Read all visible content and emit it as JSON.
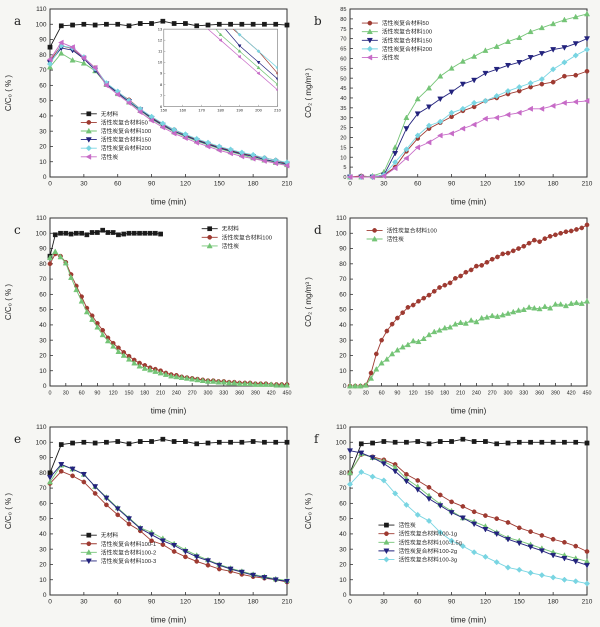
{
  "page": {
    "background": "#f6f6f3"
  },
  "chart_data": [
    {
      "panel": "a",
      "type": "line",
      "xlabel": "time (min)",
      "ylabel": "C/C₀ ( % )",
      "xlim": [
        0,
        210
      ],
      "xstep": 30,
      "ylim": [
        0,
        110
      ],
      "ystep": 10,
      "grid": false,
      "legend_position": "inside-left-lower",
      "legend": [
        0.13,
        0.6
      ],
      "x": [
        0,
        10,
        20,
        30,
        40,
        50,
        60,
        70,
        80,
        90,
        100,
        110,
        120,
        130,
        140,
        150,
        160,
        170,
        180,
        190,
        200,
        210
      ],
      "series": [
        {
          "name": "无材料",
          "color": "#1a1a1a",
          "marker": "square",
          "values": [
            85,
            99,
            99.5,
            100,
            99.5,
            100,
            100,
            99,
            100.5,
            100.5,
            102,
            100.5,
            100.5,
            99,
            99.5,
            100,
            100,
            100,
            100,
            100,
            100,
            99.5
          ]
        },
        {
          "name": "活性炭复合材料50",
          "color": "#9e3a31",
          "marker": "circle",
          "values": [
            76,
            86,
            84,
            78,
            71.5,
            61,
            55.5,
            50.5,
            44.5,
            39,
            34.5,
            31,
            27.5,
            24.5,
            22,
            19.5,
            17.5,
            15.5,
            14,
            12.5,
            11,
            9
          ]
        },
        {
          "name": "活性炭复合材料100",
          "color": "#74c476",
          "marker": "triangle-up",
          "values": [
            72,
            81,
            76.5,
            74.5,
            69.5,
            60.5,
            54.5,
            49,
            43.5,
            38,
            33.5,
            29.5,
            26.5,
            23.5,
            21,
            18.5,
            16.5,
            14.5,
            12.5,
            11,
            9.5,
            8
          ]
        },
        {
          "name": "活性炭复合材料150",
          "color": "#23237d",
          "marker": "triangle-down",
          "values": [
            75,
            84.5,
            83,
            77.5,
            70,
            61,
            55,
            49.5,
            44,
            38.5,
            34,
            30,
            27,
            24,
            21.5,
            19,
            17,
            15,
            13.5,
            11.5,
            10,
            8.5
          ]
        },
        {
          "name": "活性炭复合材料200",
          "color": "#79d5e2",
          "marker": "diamond",
          "values": [
            74,
            86,
            84.5,
            78.5,
            71,
            61.5,
            56,
            50,
            44.5,
            39.5,
            35,
            31,
            28,
            25,
            22.5,
            20,
            18,
            16,
            14.5,
            12.5,
            11,
            9.5
          ]
        },
        {
          "name": "活性炭",
          "color": "#c76bc7",
          "marker": "triangle-left",
          "values": [
            77,
            88,
            85,
            78,
            71.5,
            60,
            54,
            48.5,
            42.5,
            37,
            32.5,
            28.5,
            25.5,
            22.5,
            20,
            17.5,
            15.5,
            13.5,
            12,
            10.5,
            9,
            7.5
          ]
        }
      ],
      "inset": {
        "x0": 0.48,
        "y0": 0.12,
        "x1": 0.96,
        "y1": 0.58,
        "xlim": [
          150,
          210
        ],
        "ylim": [
          6,
          13
        ],
        "xstep": 10,
        "ystep": 1
      }
    },
    {
      "panel": "b",
      "type": "line",
      "xlabel": "time (min)",
      "ylabel": "CO₂ ( mg/m³ )",
      "xlim": [
        0,
        210
      ],
      "xstep": 30,
      "ylim": [
        0,
        85
      ],
      "ystep": 5,
      "ytick_font": 5.6,
      "grid": false,
      "legend_position": "inside-top-left",
      "legend": [
        0.05,
        0.06
      ],
      "x": [
        0,
        10,
        20,
        30,
        40,
        50,
        60,
        70,
        80,
        90,
        100,
        110,
        120,
        130,
        140,
        150,
        160,
        170,
        180,
        190,
        200,
        210
      ],
      "series": [
        {
          "name": "活性炭复合材料50",
          "color": "#9e3a31",
          "marker": "circle",
          "values": [
            0,
            0.5,
            0,
            1,
            5,
            13,
            19.5,
            24.5,
            27.5,
            30.5,
            33.5,
            35.5,
            38.5,
            40,
            42,
            43.5,
            45.5,
            47,
            48,
            51,
            51.5,
            53.5
          ]
        },
        {
          "name": "活性炭复合材料100",
          "color": "#74c476",
          "marker": "triangle-up",
          "values": [
            0,
            0,
            0.5,
            2.5,
            15,
            30,
            39.5,
            45,
            51,
            55,
            58.5,
            61,
            64,
            66,
            68.5,
            70.5,
            73.5,
            75.5,
            77.5,
            79.5,
            81,
            82.5
          ]
        },
        {
          "name": "活性炭复合材料150",
          "color": "#23237d",
          "marker": "triangle-down",
          "values": [
            0,
            0,
            0,
            1,
            12,
            24.5,
            32,
            35.5,
            39.5,
            43,
            47,
            49,
            52.5,
            54.5,
            56.5,
            58,
            60.5,
            62.5,
            64.5,
            65.5,
            67.5,
            70
          ]
        },
        {
          "name": "活性炭复合材料200",
          "color": "#79d5e2",
          "marker": "diamond",
          "values": [
            0,
            0,
            0,
            1,
            7.5,
            14,
            21,
            26,
            28,
            32.5,
            34.5,
            37.5,
            38.5,
            41,
            43.5,
            45.5,
            47.5,
            49.5,
            54.5,
            58,
            61.5,
            64.5
          ]
        },
        {
          "name": "活性炭",
          "color": "#c76bc7",
          "marker": "triangle-left",
          "values": [
            0,
            0,
            0,
            0.5,
            4.5,
            9.5,
            15,
            17.5,
            21,
            22,
            24.5,
            26.5,
            29.5,
            30,
            31.5,
            32.5,
            34.5,
            34.5,
            36,
            37.5,
            38,
            38.5
          ]
        }
      ]
    },
    {
      "panel": "c",
      "type": "line",
      "xlabel": "time (min)",
      "ylabel": "C/C₀ ( % )",
      "xlim": [
        0,
        450
      ],
      "xstep": 30,
      "ylim": [
        0,
        110
      ],
      "ystep": 10,
      "xtick_font": 5.4,
      "grid": false,
      "legend_position": "inside-top-right",
      "legend": [
        0.64,
        0.04
      ],
      "x": [
        0,
        10,
        20,
        30,
        40,
        50,
        60,
        70,
        80,
        90,
        100,
        110,
        120,
        130,
        140,
        150,
        160,
        170,
        180,
        190,
        200,
        210,
        220,
        230,
        240,
        250,
        260,
        270,
        280,
        290,
        300,
        310,
        320,
        330,
        340,
        350,
        360,
        370,
        380,
        390,
        400,
        410,
        420,
        430,
        440,
        450
      ],
      "series": [
        {
          "name": "无材料",
          "color": "#1a1a1a",
          "marker": "square",
          "values": [
            85,
            99,
            100,
            100,
            99.5,
            100,
            100,
            99,
            100.5,
            100.5,
            102,
            100.5,
            100.5,
            99,
            99.5,
            100,
            100,
            100,
            100,
            100,
            100,
            99.5
          ]
        },
        {
          "name": "活性炭复合材料100",
          "color": "#9e3a31",
          "marker": "circle",
          "values": [
            80,
            86.5,
            85,
            81,
            73,
            65.5,
            58.5,
            51,
            46,
            41,
            36.5,
            31.5,
            28,
            25,
            22,
            19.5,
            17,
            15,
            13.5,
            12,
            11,
            10,
            8.5,
            7.5,
            7,
            6,
            5.5,
            5,
            4.5,
            4,
            3.5,
            3.5,
            3,
            3,
            2.5,
            2.5,
            2,
            2,
            2,
            1.5,
            1.5,
            1.5,
            1,
            1,
            1,
            1
          ]
        },
        {
          "name": "活性炭",
          "color": "#74c476",
          "marker": "triangle-up",
          "values": [
            84,
            88,
            84.5,
            80.5,
            71,
            63,
            55.5,
            48.5,
            43.5,
            38.5,
            33.5,
            29.5,
            26,
            22.5,
            20,
            17.5,
            15,
            13,
            11.5,
            10.5,
            9.5,
            8.5,
            7.5,
            6.5,
            6,
            5.5,
            5,
            4.5,
            4,
            3.5,
            3,
            3,
            2.5,
            2.5,
            2,
            2,
            1.5,
            1.5,
            1.5,
            1,
            1,
            1,
            1,
            0.5,
            0.5,
            0.5
          ]
        }
      ]
    },
    {
      "panel": "d",
      "type": "line",
      "xlabel": "time (min)",
      "ylabel": "CO₂ ( mg/m³ )",
      "xlim": [
        0,
        450
      ],
      "xstep": 30,
      "ylim": [
        0,
        110
      ],
      "ystep": 10,
      "xtick_font": 5.4,
      "grid": false,
      "legend_position": "inside-top-left",
      "legend": [
        0.07,
        0.05
      ],
      "x": [
        0,
        10,
        20,
        30,
        40,
        50,
        60,
        70,
        80,
        90,
        100,
        110,
        120,
        130,
        140,
        150,
        160,
        170,
        180,
        190,
        200,
        210,
        220,
        230,
        240,
        250,
        260,
        270,
        280,
        290,
        300,
        310,
        320,
        330,
        340,
        350,
        360,
        370,
        380,
        390,
        400,
        410,
        420,
        430,
        440,
        450
      ],
      "series": [
        {
          "name": "活性炭复合材料100",
          "color": "#9e3a31",
          "marker": "circle",
          "values": [
            0,
            0,
            0,
            0.5,
            8.5,
            21,
            30,
            36,
            40.5,
            44.5,
            48,
            51.5,
            53,
            55.5,
            57.5,
            59.5,
            62,
            64.5,
            66,
            67.5,
            70.5,
            72,
            74.5,
            76,
            78.5,
            79,
            81,
            83,
            84.5,
            86.5,
            87,
            88.5,
            90,
            91.5,
            93.5,
            95.5,
            94.5,
            96.5,
            98,
            99,
            100,
            101,
            101.5,
            102.5,
            103.5,
            105.5
          ]
        },
        {
          "name": "活性炭",
          "color": "#74c476",
          "marker": "triangle-up",
          "values": [
            0,
            0,
            0,
            0.5,
            5,
            11,
            15,
            17.5,
            21,
            23.5,
            25.5,
            27,
            29.5,
            29,
            31,
            33.5,
            35.5,
            36.5,
            38,
            38.5,
            40.5,
            41.5,
            41,
            43,
            42,
            44.5,
            45,
            46,
            45.5,
            46.5,
            47.5,
            48.5,
            49.5,
            50,
            51.5,
            51,
            50.5,
            52,
            51,
            53.5,
            53.5,
            52.5,
            54,
            54.5,
            54,
            55.5
          ]
        }
      ]
    },
    {
      "panel": "e",
      "type": "line",
      "xlabel": "time (min)",
      "ylabel": "C/C₀ ( % )",
      "xlim": [
        0,
        210
      ],
      "xstep": 30,
      "ylim": [
        0,
        110
      ],
      "ystep": 10,
      "grid": false,
      "legend_position": "inside-left-lower",
      "legend": [
        0.13,
        0.62
      ],
      "x": [
        0,
        10,
        20,
        30,
        40,
        50,
        60,
        70,
        80,
        90,
        100,
        110,
        120,
        130,
        140,
        150,
        160,
        170,
        180,
        190,
        200,
        210
      ],
      "series": [
        {
          "name": "无材料",
          "color": "#1a1a1a",
          "marker": "square",
          "values": [
            80,
            98.5,
            99.5,
            100,
            99.5,
            100,
            100.5,
            99,
            100.5,
            100.5,
            102,
            100.5,
            100.5,
            99,
            99.5,
            100,
            100,
            100,
            100.5,
            100,
            100,
            100
          ]
        },
        {
          "name": "活性炭复合材料100-1",
          "color": "#9e3a31",
          "marker": "circle",
          "values": [
            73,
            81,
            78,
            74,
            66.5,
            59,
            52.5,
            46.5,
            42,
            35.5,
            33,
            28.5,
            25,
            22,
            19.5,
            17,
            15.5,
            13.5,
            12,
            11,
            10,
            8.5
          ]
        },
        {
          "name": "活性炭复合材料100-2",
          "color": "#74c476",
          "marker": "triangle-up",
          "values": [
            74,
            85,
            82.5,
            79,
            71,
            64,
            57,
            50.5,
            44,
            41,
            37,
            33.5,
            29.5,
            26,
            23,
            20,
            17.5,
            15.5,
            13.5,
            12,
            10.5,
            9.5
          ]
        },
        {
          "name": "活性炭复合材料100-3",
          "color": "#23237d",
          "marker": "triangle-down",
          "values": [
            77,
            85.5,
            82.5,
            79,
            71,
            63.5,
            56.5,
            50,
            43.5,
            39.5,
            35.5,
            32.5,
            28.5,
            25,
            22.5,
            19.5,
            17,
            15,
            13,
            11.5,
            10,
            9
          ]
        }
      ]
    },
    {
      "panel": "f",
      "type": "line",
      "xlabel": "time (min)",
      "ylabel": "C/C₀ ( % )",
      "xlim": [
        0,
        210
      ],
      "xstep": 30,
      "ylim": [
        0,
        110
      ],
      "ystep": 10,
      "grid": false,
      "legend_position": "inside-left-lower",
      "legend": [
        0.12,
        0.56
      ],
      "x": [
        0,
        10,
        20,
        30,
        40,
        50,
        60,
        70,
        80,
        90,
        100,
        110,
        120,
        130,
        140,
        150,
        160,
        170,
        180,
        190,
        200,
        210
      ],
      "series": [
        {
          "name": "活性炭",
          "color": "#1a1a1a",
          "marker": "square",
          "values": [
            80,
            99,
            99.5,
            100.5,
            100,
            100,
            100.5,
            99,
            100.5,
            100.5,
            102,
            100.5,
            100.5,
            99,
            99.5,
            100,
            100,
            100,
            100,
            100,
            100,
            99.5
          ]
        },
        {
          "name": "活性炭复合材料100-1g",
          "color": "#9e3a31",
          "marker": "circle",
          "values": [
            80,
            92,
            90.5,
            88.5,
            85.5,
            79,
            75,
            70.5,
            65.5,
            61,
            58,
            54.5,
            52,
            50,
            47.5,
            44,
            41.5,
            39,
            36.5,
            34.5,
            32,
            28.5
          ]
        },
        {
          "name": "活性炭复合材料100-1.5g",
          "color": "#74c476",
          "marker": "triangle-up",
          "values": [
            80,
            92.5,
            90,
            87.5,
            83.5,
            76,
            71,
            65,
            59.5,
            55,
            50.5,
            48,
            45,
            41,
            37.5,
            35.5,
            33,
            30.5,
            28,
            26,
            24,
            22
          ]
        },
        {
          "name": "活性炭复合材料100-2g",
          "color": "#23237d",
          "marker": "triangle-down",
          "values": [
            94.5,
            93,
            90,
            86,
            81,
            74.5,
            69,
            63,
            58.5,
            54,
            50.5,
            46.5,
            43,
            40,
            36.5,
            34,
            31.5,
            29,
            26,
            24,
            22,
            19.5
          ]
        },
        {
          "name": "活性炭复合材料100-3g",
          "color": "#79d5e2",
          "marker": "diamond",
          "values": [
            72.5,
            80.5,
            77.5,
            75,
            66.5,
            59,
            52.5,
            48.5,
            41,
            35.5,
            32,
            28,
            25,
            21.5,
            18,
            16.5,
            14.5,
            13,
            11.5,
            10,
            9,
            7.5
          ]
        }
      ]
    }
  ]
}
